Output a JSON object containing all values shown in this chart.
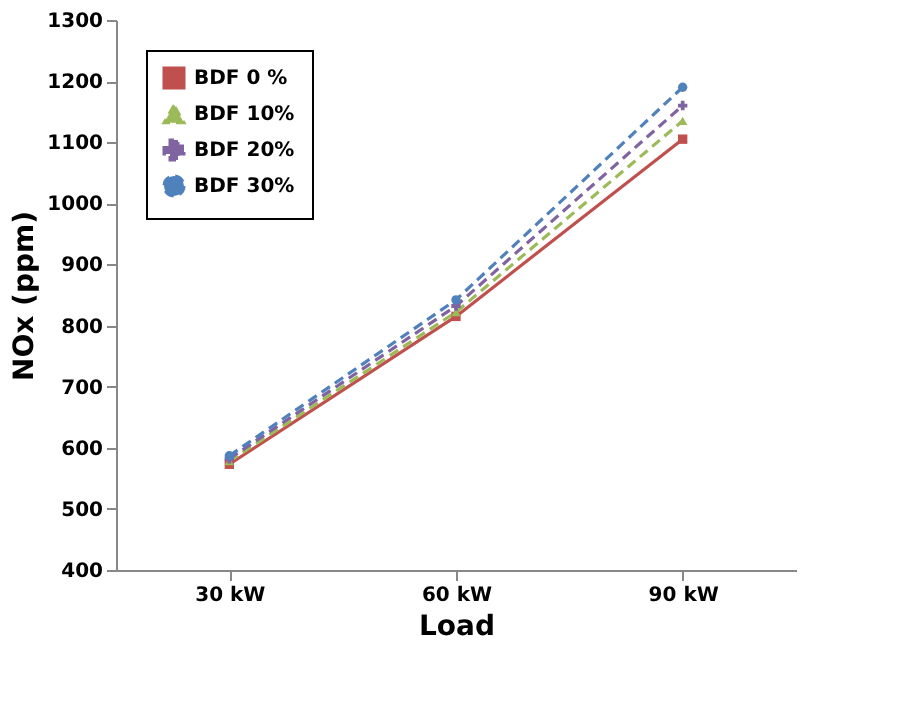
{
  "chart_data": {
    "type": "line",
    "xlabel": "Load",
    "ylabel": "NOx (ppm)",
    "categories": [
      "30 kW",
      "60 kW",
      "90 kW"
    ],
    "series": [
      {
        "name": "BDF 0 %",
        "color": "#c0504d",
        "values": [
          573,
          815,
          1105
        ],
        "line_style": "solid",
        "marker": "square"
      },
      {
        "name": "BDF 10%",
        "color": "#9bbb59",
        "values": [
          578,
          822,
          1135
        ],
        "line_style": "dashed",
        "marker": "triangle"
      },
      {
        "name": "BDF 20%",
        "color": "#8064a2",
        "values": [
          582,
          832,
          1160
        ],
        "line_style": "dashed",
        "marker": "cross"
      },
      {
        "name": "BDF 30%",
        "color": "#4f81bd",
        "values": [
          587,
          842,
          1190
        ],
        "line_style": "dashed",
        "marker": "circle"
      }
    ],
    "ylim": [
      400,
      1300
    ],
    "yticks": [
      400,
      500,
      600,
      700,
      800,
      900,
      1000,
      1100,
      1200,
      1300
    ],
    "grid": false,
    "legend": "top left"
  }
}
